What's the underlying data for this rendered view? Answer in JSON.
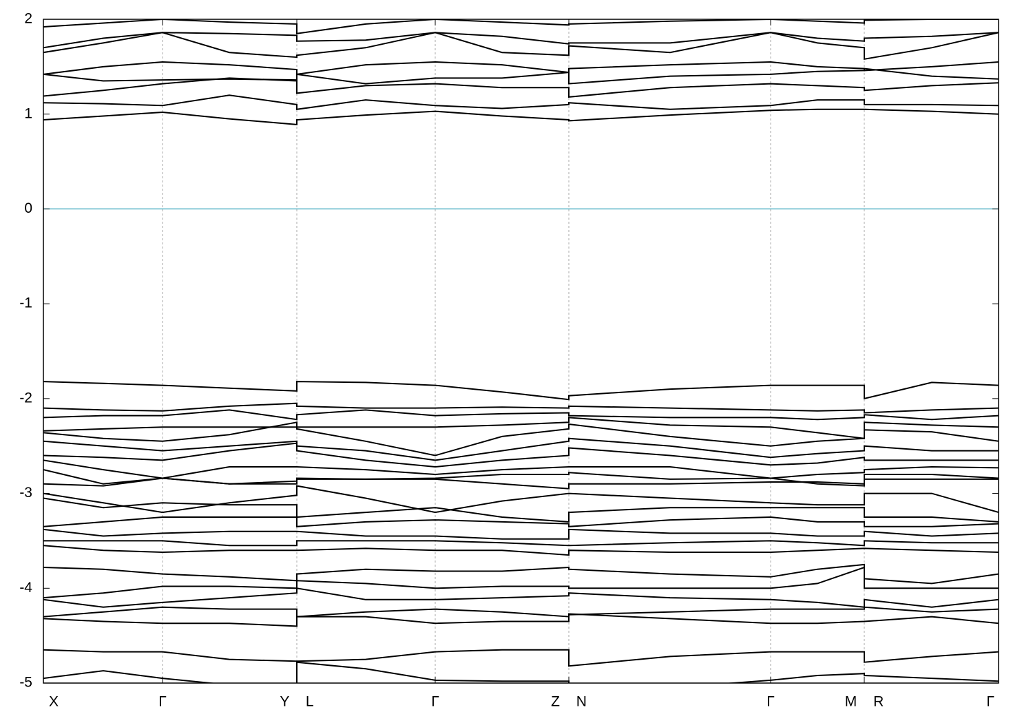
{
  "chart_data": {
    "type": "line",
    "color": "#000000",
    "grid": true,
    "grid_axis": "x",
    "fermi_level": 0,
    "fermi_color": "#5ab4c8",
    "x": [
      0,
      87,
      173,
      270,
      368,
      368,
      468,
      569,
      666,
      763,
      763,
      910,
      1056,
      1124,
      1192,
      1192,
      1290,
      1387
    ],
    "xlim": [
      0,
      1387
    ],
    "xticks": [
      {
        "value": 0,
        "label": "X"
      },
      {
        "value": 173,
        "label": "Γ"
      },
      {
        "value": 368,
        "label": "Y L"
      },
      {
        "value": 569,
        "label": "Γ"
      },
      {
        "value": 763,
        "label": "Z N"
      },
      {
        "value": 1056,
        "label": "Γ"
      },
      {
        "value": 1192,
        "label": "M R"
      },
      {
        "value": 1387,
        "label": "Γ"
      }
    ],
    "ylim": [
      -5,
      2
    ],
    "yticks": [
      2,
      1,
      0,
      -1,
      -2,
      -3,
      -4,
      -5
    ],
    "series": [
      {
        "values": [
          0.94,
          0.98,
          1.02,
          0.95,
          0.89,
          0.94,
          0.99,
          1.03,
          0.98,
          0.94,
          0.93,
          0.99,
          1.04,
          1.05,
          1.05,
          1.05,
          1.03,
          1.0
        ]
      },
      {
        "values": [
          1.12,
          1.11,
          1.09,
          1.2,
          1.1,
          1.05,
          1.15,
          1.09,
          1.06,
          1.1,
          1.12,
          1.05,
          1.09,
          1.15,
          1.15,
          1.1,
          1.1,
          1.09
        ]
      },
      {
        "values": [
          1.19,
          1.25,
          1.32,
          1.38,
          1.35,
          1.22,
          1.3,
          1.32,
          1.28,
          1.28,
          1.18,
          1.28,
          1.32,
          1.3,
          1.28,
          1.25,
          1.3,
          1.33
        ]
      },
      {
        "values": [
          1.42,
          1.35,
          1.36,
          1.37,
          1.36,
          1.42,
          1.32,
          1.38,
          1.38,
          1.44,
          1.32,
          1.4,
          1.42,
          1.45,
          1.46,
          1.48,
          1.4,
          1.37
        ]
      },
      {
        "values": [
          1.42,
          1.5,
          1.55,
          1.52,
          1.47,
          1.42,
          1.52,
          1.55,
          1.52,
          1.44,
          1.48,
          1.52,
          1.55,
          1.5,
          1.48,
          1.46,
          1.5,
          1.55
        ]
      },
      {
        "values": [
          1.65,
          1.75,
          1.86,
          1.65,
          1.6,
          1.62,
          1.7,
          1.86,
          1.65,
          1.62,
          1.72,
          1.65,
          1.86,
          1.75,
          1.7,
          1.58,
          1.7,
          1.86
        ]
      },
      {
        "values": [
          1.7,
          1.8,
          1.86,
          1.85,
          1.83,
          1.77,
          1.78,
          1.86,
          1.82,
          1.74,
          1.75,
          1.75,
          1.86,
          1.8,
          1.77,
          1.8,
          1.82,
          1.86
        ]
      },
      {
        "values": [
          1.92,
          1.96,
          2.0,
          1.97,
          1.95,
          1.85,
          1.95,
          2.0,
          1.97,
          1.94,
          1.95,
          1.98,
          2.0,
          1.98,
          1.96,
          1.99,
          2.0,
          2.0
        ]
      },
      {
        "values": [
          -1.82,
          -1.84,
          -1.86,
          -1.89,
          -1.92,
          -1.82,
          -1.83,
          -1.86,
          -1.93,
          -2.01,
          -1.97,
          -1.9,
          -1.86,
          -1.86,
          -1.86,
          -2.0,
          -1.83,
          -1.86
        ]
      },
      {
        "values": [
          -2.1,
          -2.12,
          -2.13,
          -2.08,
          -2.05,
          -2.08,
          -2.1,
          -2.1,
          -2.09,
          -2.1,
          -2.08,
          -2.1,
          -2.12,
          -2.13,
          -2.12,
          -2.15,
          -2.12,
          -2.1
        ]
      },
      {
        "values": [
          -2.2,
          -2.18,
          -2.18,
          -2.12,
          -2.22,
          -2.17,
          -2.12,
          -2.18,
          -2.16,
          -2.15,
          -2.18,
          -2.2,
          -2.2,
          -2.22,
          -2.2,
          -2.17,
          -2.22,
          -2.18
        ]
      },
      {
        "values": [
          -2.34,
          -2.32,
          -2.3,
          -2.3,
          -2.3,
          -2.3,
          -2.3,
          -2.3,
          -2.28,
          -2.25,
          -2.2,
          -2.28,
          -2.3,
          -2.36,
          -2.42,
          -2.25,
          -2.28,
          -2.3
        ]
      },
      {
        "values": [
          -2.36,
          -2.42,
          -2.45,
          -2.38,
          -2.25,
          -2.32,
          -2.45,
          -2.6,
          -2.4,
          -2.32,
          -2.27,
          -2.4,
          -2.5,
          -2.45,
          -2.42,
          -2.33,
          -2.35,
          -2.45
        ]
      },
      {
        "values": [
          -2.45,
          -2.5,
          -2.55,
          -2.5,
          -2.45,
          -2.5,
          -2.55,
          -2.65,
          -2.55,
          -2.45,
          -2.42,
          -2.5,
          -2.62,
          -2.58,
          -2.55,
          -2.5,
          -2.55,
          -2.55
        ]
      },
      {
        "values": [
          -2.6,
          -2.62,
          -2.65,
          -2.55,
          -2.47,
          -2.55,
          -2.65,
          -2.72,
          -2.65,
          -2.6,
          -2.52,
          -2.6,
          -2.7,
          -2.68,
          -2.62,
          -2.65,
          -2.65,
          -2.65
        ]
      },
      {
        "values": [
          -2.65,
          -2.75,
          -2.84,
          -2.72,
          -2.72,
          -2.72,
          -2.75,
          -2.8,
          -2.75,
          -2.72,
          -2.72,
          -2.72,
          -2.84,
          -2.8,
          -2.78,
          -2.75,
          -2.72,
          -2.73
        ]
      },
      {
        "values": [
          -2.75,
          -2.9,
          -2.84,
          -2.9,
          -2.87,
          -2.84,
          -2.85,
          -2.84,
          -2.8,
          -2.8,
          -2.78,
          -2.85,
          -2.84,
          -2.9,
          -2.92,
          -2.8,
          -2.8,
          -2.84
        ]
      },
      {
        "values": [
          -2.9,
          -2.92,
          -2.84,
          -2.9,
          -2.9,
          -2.85,
          -2.85,
          -2.85,
          -2.9,
          -2.95,
          -2.9,
          -2.9,
          -2.88,
          -2.88,
          -2.9,
          -2.85,
          -2.85,
          -2.85
        ]
      },
      {
        "values": [
          -3.0,
          -3.1,
          -3.2,
          -3.1,
          -3.02,
          -2.92,
          -3.05,
          -3.2,
          -3.08,
          -3.0,
          -3.0,
          -3.05,
          -3.1,
          -3.12,
          -3.12,
          -3.0,
          -3.0,
          -3.2
        ]
      },
      {
        "values": [
          -3.05,
          -3.15,
          -3.1,
          -3.12,
          -3.12,
          -3.25,
          -3.2,
          -3.15,
          -3.25,
          -3.3,
          -3.2,
          -3.15,
          -3.15,
          -3.15,
          -3.15,
          -3.25,
          -3.25,
          -3.3
        ]
      },
      {
        "values": [
          -3.35,
          -3.3,
          -3.25,
          -3.25,
          -3.25,
          -3.35,
          -3.3,
          -3.28,
          -3.3,
          -3.32,
          -3.35,
          -3.28,
          -3.25,
          -3.3,
          -3.3,
          -3.35,
          -3.35,
          -3.32
        ]
      },
      {
        "values": [
          -3.38,
          -3.45,
          -3.42,
          -3.4,
          -3.4,
          -3.4,
          -3.45,
          -3.45,
          -3.48,
          -3.48,
          -3.38,
          -3.42,
          -3.42,
          -3.45,
          -3.45,
          -3.4,
          -3.45,
          -3.42
        ]
      },
      {
        "values": [
          -3.5,
          -3.5,
          -3.5,
          -3.55,
          -3.55,
          -3.5,
          -3.5,
          -3.5,
          -3.52,
          -3.55,
          -3.55,
          -3.52,
          -3.5,
          -3.52,
          -3.55,
          -3.5,
          -3.52,
          -3.52
        ]
      },
      {
        "values": [
          -3.55,
          -3.6,
          -3.62,
          -3.6,
          -3.6,
          -3.6,
          -3.58,
          -3.6,
          -3.6,
          -3.65,
          -3.6,
          -3.62,
          -3.62,
          -3.6,
          -3.58,
          -3.58,
          -3.6,
          -3.62
        ]
      },
      {
        "values": [
          -3.78,
          -3.8,
          -3.85,
          -3.88,
          -3.92,
          -3.85,
          -3.8,
          -3.82,
          -3.82,
          -3.78,
          -3.8,
          -3.85,
          -3.88,
          -3.8,
          -3.75,
          -3.9,
          -3.95,
          -3.85
        ]
      },
      {
        "values": [
          -4.1,
          -4.05,
          -3.98,
          -3.98,
          -4.0,
          -3.92,
          -3.95,
          -4.0,
          -3.98,
          -3.98,
          -4.0,
          -4.0,
          -4.0,
          -3.95,
          -3.78,
          -4.0,
          -4.0,
          -4.0
        ]
      },
      {
        "values": [
          -4.12,
          -4.2,
          -4.15,
          -4.1,
          -4.05,
          -4.0,
          -4.12,
          -4.12,
          -4.1,
          -4.08,
          -4.05,
          -4.1,
          -4.12,
          -4.15,
          -4.2,
          -4.12,
          -4.2,
          -4.12
        ]
      },
      {
        "values": [
          -4.3,
          -4.25,
          -4.2,
          -4.22,
          -4.22,
          -4.3,
          -4.25,
          -4.22,
          -4.25,
          -4.3,
          -4.28,
          -4.25,
          -4.22,
          -4.22,
          -4.22,
          -4.2,
          -4.25,
          -4.22
        ]
      },
      {
        "values": [
          -4.32,
          -4.35,
          -4.37,
          -4.37,
          -4.4,
          -4.3,
          -4.3,
          -4.37,
          -4.35,
          -4.35,
          -4.27,
          -4.32,
          -4.37,
          -4.37,
          -4.35,
          -4.35,
          -4.3,
          -4.37
        ]
      },
      {
        "values": [
          -4.65,
          -4.67,
          -4.67,
          -4.75,
          -4.77,
          -4.77,
          -4.75,
          -4.67,
          -4.65,
          -4.65,
          -4.82,
          -4.72,
          -4.67,
          -4.67,
          -4.67,
          -4.78,
          -4.72,
          -4.67
        ]
      },
      {
        "values": [
          -4.95,
          -4.87,
          -4.95,
          -5.02,
          -5.1,
          -4.78,
          -4.85,
          -4.97,
          -4.98,
          -4.98,
          -5.1,
          -5.05,
          -4.97,
          -4.92,
          -4.9,
          -4.92,
          -4.95,
          -4.98
        ]
      }
    ]
  }
}
